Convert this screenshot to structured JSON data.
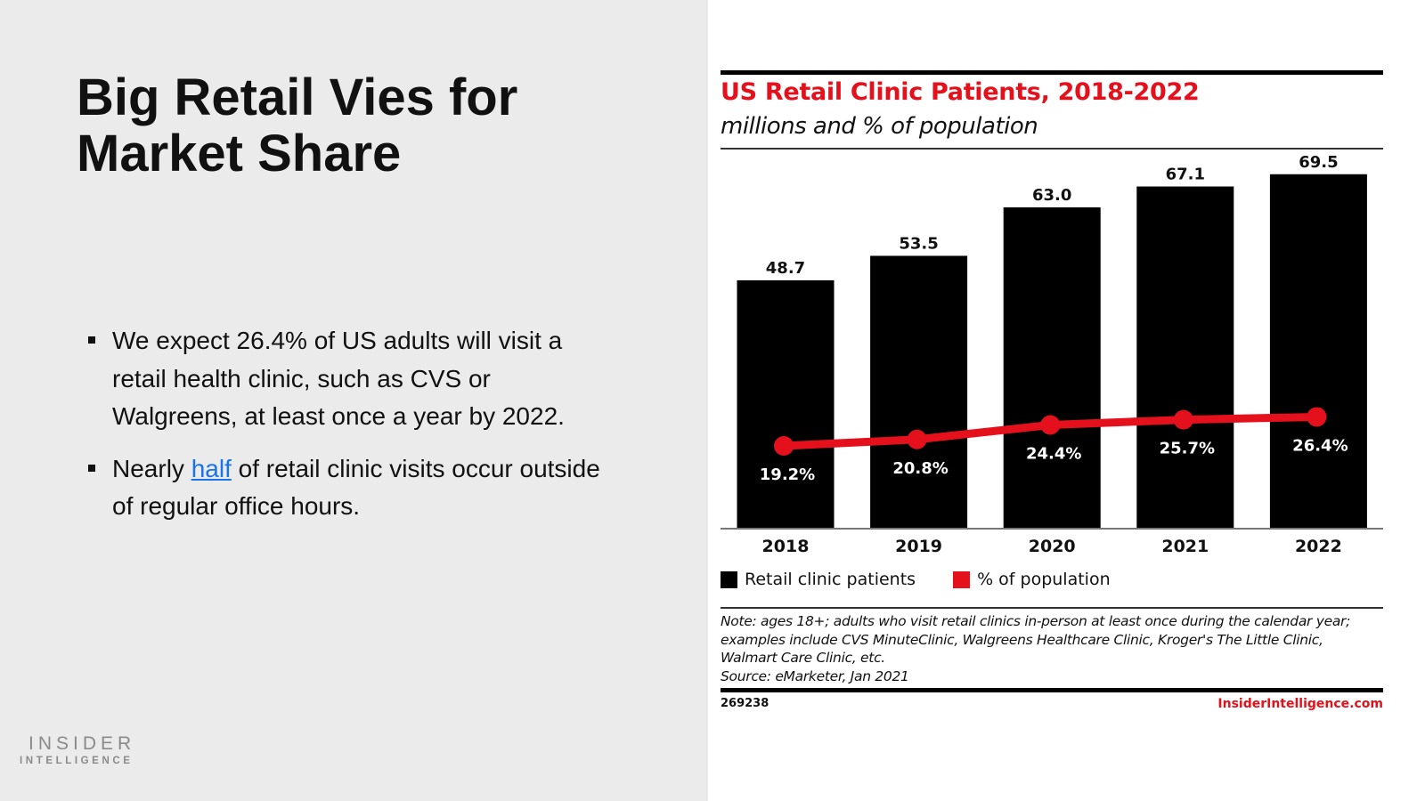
{
  "slide": {
    "title": "Big Retail Vies for Market Share",
    "bullets": [
      {
        "text": "We expect 26.4% of US adults will visit a retail health clinic, such as CVS or Walgreens, at least once a year by 2022."
      },
      {
        "before": "Nearly ",
        "link": "half",
        "after": " of retail clinic visits occur outside of regular office hours."
      }
    ],
    "logo": {
      "top": "INSIDER",
      "bottom": "INTELLIGENCE"
    }
  },
  "chart_data": {
    "type": "bar",
    "title": "US Retail Clinic Patients, 2018-2022",
    "subtitle": "millions and % of population",
    "categories": [
      "2018",
      "2019",
      "2020",
      "2021",
      "2022"
    ],
    "series": [
      {
        "name": "Retail clinic patients",
        "type": "bar",
        "color": "#000000",
        "values": [
          48.7,
          53.5,
          63.0,
          67.1,
          69.5
        ],
        "labels": [
          "48.7",
          "53.5",
          "63.0",
          "67.1",
          "69.5"
        ]
      },
      {
        "name": "% of population",
        "type": "line",
        "color": "#e4111c",
        "values": [
          19.2,
          20.8,
          24.4,
          25.7,
          26.4
        ],
        "labels": [
          "19.2%",
          "20.8%",
          "24.4%",
          "25.7%",
          "26.4%"
        ]
      }
    ],
    "xlabel": "",
    "ylabel": "",
    "ylim": [
      0,
      75
    ],
    "grid": false,
    "legend_position": "bottom-left",
    "note": "Note: ages 18+; adults who visit retail clinics in-person at least once during the calendar year; examples include CVS MinuteClinic, Walgreens Healthcare Clinic, Kroger's The Little Clinic, Walmart Care Clinic, etc.",
    "source": "Source: eMarketer, Jan 2021",
    "chart_id": "269238",
    "brand": "InsiderIntelligence.com"
  }
}
